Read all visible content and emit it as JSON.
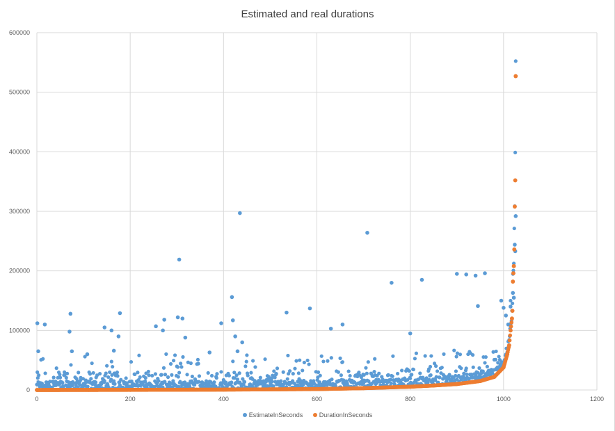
{
  "chart_data": {
    "type": "scatter",
    "title": "Estimated and real durations",
    "xlabel": "",
    "ylabel": "",
    "xlim": [
      0,
      1200
    ],
    "ylim": [
      0,
      600000
    ],
    "x_ticks": [
      "0",
      "200",
      "400",
      "600",
      "800",
      "1000",
      "1200"
    ],
    "y_ticks": [
      "0",
      "100000",
      "200000",
      "300000",
      "400000",
      "500000",
      "600000"
    ],
    "grid": true,
    "legend_position": "bottom",
    "series": [
      {
        "name": "EstimateInSeconds",
        "color": "#5b9bd5",
        "notable_points": [
          [
            1,
            112000
          ],
          [
            3,
            65000
          ],
          [
            17,
            110000
          ],
          [
            70,
            98000
          ],
          [
            72,
            128000
          ],
          [
            75,
            65000
          ],
          [
            108,
            60000
          ],
          [
            145,
            105000
          ],
          [
            160,
            100000
          ],
          [
            165,
            66000
          ],
          [
            175,
            90000
          ],
          [
            178,
            129000
          ],
          [
            255,
            107000
          ],
          [
            270,
            100000
          ],
          [
            273,
            118000
          ],
          [
            305,
            219000
          ],
          [
            302,
            122000
          ],
          [
            312,
            120000
          ],
          [
            318,
            88000
          ],
          [
            370,
            63000
          ],
          [
            395,
            112000
          ],
          [
            418,
            156000
          ],
          [
            420,
            117000
          ],
          [
            425,
            90000
          ],
          [
            430,
            65000
          ],
          [
            435,
            297000
          ],
          [
            440,
            80000
          ],
          [
            535,
            130000
          ],
          [
            585,
            137000
          ],
          [
            630,
            103000
          ],
          [
            655,
            110000
          ],
          [
            708,
            264000
          ],
          [
            760,
            180000
          ],
          [
            800,
            95000
          ],
          [
            825,
            185000
          ],
          [
            900,
            195000
          ],
          [
            920,
            194000
          ],
          [
            940,
            192000
          ],
          [
            945,
            141000
          ],
          [
            960,
            196000
          ],
          [
            995,
            150000
          ],
          [
            1000,
            138000
          ],
          [
            1005,
            125000
          ],
          [
            1010,
            110000
          ],
          [
            1015,
            140000
          ],
          [
            1020,
            163000
          ],
          [
            1022,
            155000
          ],
          [
            1024,
            244000
          ],
          [
            1025,
            233000
          ],
          [
            1026,
            292000
          ]
        ]
      },
      {
        "name": "DurationInSeconds",
        "color": "#ed7d31",
        "notable_points": [
          [
            0,
            0
          ],
          [
            200,
            200
          ],
          [
            400,
            600
          ],
          [
            600,
            1500
          ],
          [
            700,
            3000
          ],
          [
            800,
            5500
          ],
          [
            850,
            7500
          ],
          [
            900,
            10000
          ],
          [
            950,
            15000
          ],
          [
            980,
            22000
          ],
          [
            1000,
            38000
          ],
          [
            1008,
            60000
          ],
          [
            1012,
            75000
          ],
          [
            1015,
            100000
          ],
          [
            1018,
            120000
          ],
          [
            1019,
            133000
          ],
          [
            1020,
            182000
          ],
          [
            1021,
            196000
          ],
          [
            1022,
            208000
          ],
          [
            1023,
            236000
          ],
          [
            1024,
            308000
          ],
          [
            1025,
            352000
          ],
          [
            1026,
            527000
          ]
        ]
      }
    ]
  }
}
